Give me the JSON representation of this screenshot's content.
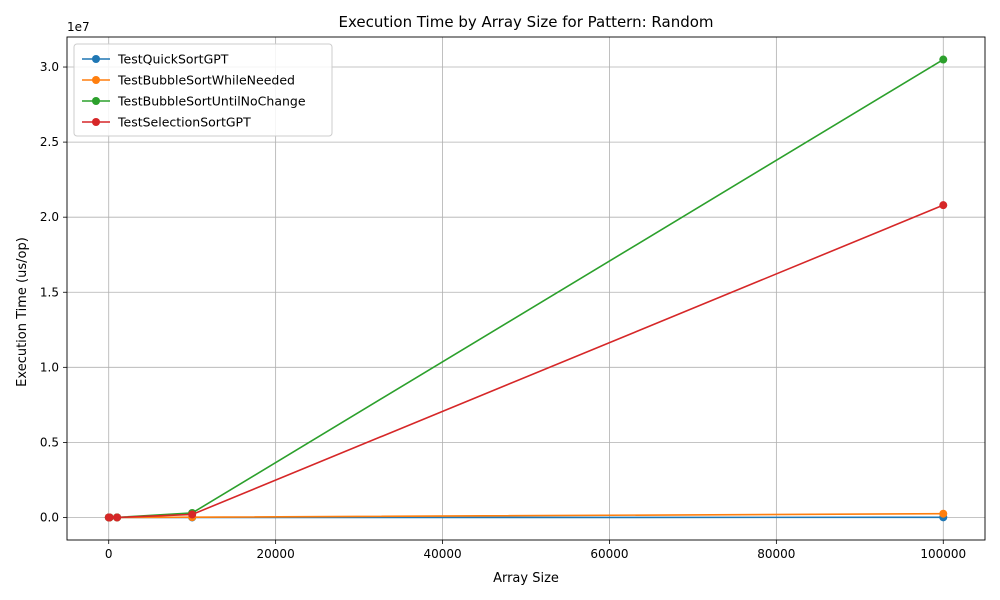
{
  "chart_data": {
    "type": "line",
    "title": "Execution Time by Array Size for Pattern: Random",
    "xlabel": "Array Size",
    "ylabel": "Execution Time (us/op)",
    "y_offset_text": "1e7",
    "y_scale": 10000000,
    "xlim": [
      -5000,
      105000
    ],
    "ylim": [
      -1500000,
      32000000
    ],
    "x_ticks": [
      0,
      20000,
      40000,
      60000,
      80000,
      100000
    ],
    "x_tick_labels": [
      "0",
      "20000",
      "40000",
      "60000",
      "80000",
      "100000"
    ],
    "y_ticks": [
      0,
      5000000,
      10000000,
      15000000,
      20000000,
      25000000,
      30000000
    ],
    "y_tick_labels": [
      "0.0",
      "0.5",
      "1.0",
      "1.5",
      "2.0",
      "2.5",
      "3.0"
    ],
    "grid": true,
    "legend_position": "top-left",
    "x": [
      10,
      100,
      1000,
      10000,
      100000
    ],
    "series": [
      {
        "name": "TestQuickSortGPT",
        "color": "#1f77b4",
        "values": [
          0,
          1,
          60,
          700,
          9000
        ]
      },
      {
        "name": "TestBubbleSortWhileNeeded",
        "color": "#ff7f0e",
        "values": [
          0,
          10,
          900,
          20000,
          250000
        ]
      },
      {
        "name": "TestBubbleSortUntilNoChange",
        "color": "#2ca02c",
        "values": [
          0,
          30,
          3000,
          300000,
          30500000
        ]
      },
      {
        "name": "TestSelectionSortGPT",
        "color": "#d62728",
        "values": [
          0,
          20,
          2000,
          200000,
          20800000
        ]
      }
    ]
  }
}
